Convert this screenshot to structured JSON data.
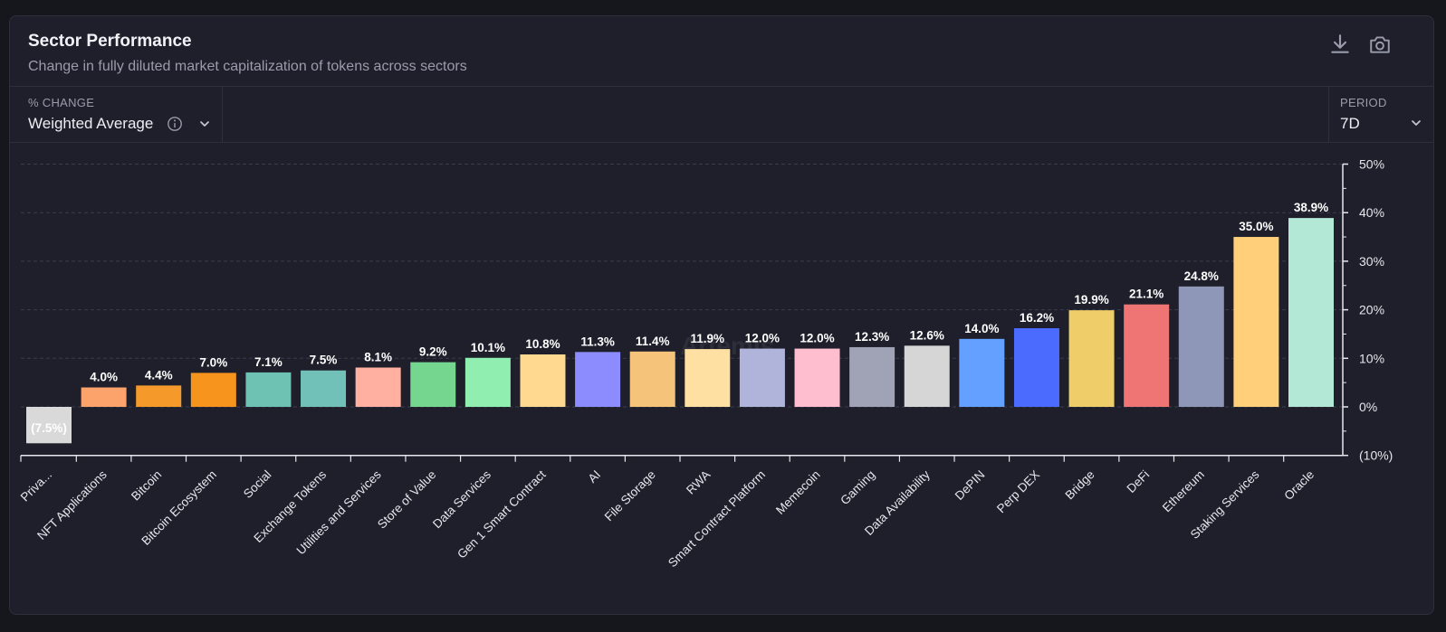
{
  "header": {
    "title": "Sector Performance",
    "subtitle": "Change in fully diluted market capitalization of tokens across sectors",
    "download_icon": "download-icon",
    "screenshot_icon": "camera-icon"
  },
  "controls": {
    "metric_label": "% CHANGE",
    "metric_value": "Weighted Average",
    "info_icon": "info-icon",
    "period_label": "PERIOD",
    "period_value": "7D"
  },
  "watermark": "Artemis",
  "chart_data": {
    "type": "bar",
    "title": "Sector Performance",
    "ylim": [
      -10,
      50
    ],
    "yticks": [
      50,
      40,
      30,
      20,
      10,
      0,
      -10
    ],
    "ytick_labels": [
      "50%",
      "40%",
      "30%",
      "20%",
      "10%",
      "0%",
      "(10%)"
    ],
    "grid": true,
    "categories": [
      "Priva...",
      "NFT Applications",
      "Bitcoin",
      "Bitcoin Ecosystem",
      "Social",
      "Exchange Tokens",
      "Utilities and Services",
      "Store of Value",
      "Data Services",
      "Gen 1 Smart Contract",
      "AI",
      "File Storage",
      "RWA",
      "Smart Contract Platform",
      "Memecoin",
      "Gaming",
      "Data Availability",
      "DePIN",
      "Perp DEX",
      "Bridge",
      "DeFi",
      "Ethereum",
      "Staking Services",
      "Oracle"
    ],
    "values": [
      -7.5,
      4.0,
      4.4,
      7.0,
      7.1,
      7.5,
      8.1,
      9.2,
      10.1,
      10.8,
      11.3,
      11.4,
      11.9,
      12.0,
      12.0,
      12.3,
      12.6,
      14.0,
      16.2,
      19.9,
      21.1,
      24.8,
      35.0,
      38.9
    ],
    "value_labels": [
      "(7.5%)",
      "4.0%",
      "4.4%",
      "7.0%",
      "7.1%",
      "7.5%",
      "8.1%",
      "9.2%",
      "10.1%",
      "10.8%",
      "11.3%",
      "11.4%",
      "11.9%",
      "12.0%",
      "12.0%",
      "12.3%",
      "12.6%",
      "14.0%",
      "16.2%",
      "19.9%",
      "21.1%",
      "24.8%",
      "35.0%",
      "38.9%"
    ],
    "colors": [
      "#d9d9d9",
      "#fca26b",
      "#f59a2a",
      "#f7941e",
      "#6ec2b4",
      "#72c1b8",
      "#ffb0a0",
      "#74d68f",
      "#90eeb0",
      "#ffd98f",
      "#8c8cff",
      "#f5c47a",
      "#ffe0a3",
      "#b0b3da",
      "#ffbdd0",
      "#a0a2b5",
      "#d6d6d6",
      "#63a0ff",
      "#4b6bff",
      "#efce69",
      "#ef7575",
      "#8f97b8",
      "#ffcf7a",
      "#b3e8d6"
    ]
  }
}
